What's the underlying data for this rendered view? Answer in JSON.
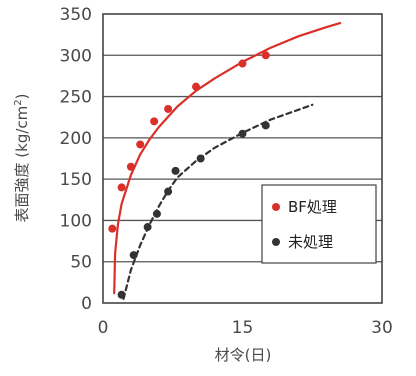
{
  "chart_data": {
    "type": "scatter",
    "xlabel": "材令(日)",
    "ylabel_main": "表面強度 (kg/cm",
    "ylabel_sup": "2",
    "ylabel_close": ")",
    "xlim": [
      0,
      30
    ],
    "ylim": [
      0,
      350
    ],
    "xticks": [
      0,
      15,
      30
    ],
    "xtick_labels": [
      "0",
      "15",
      "30"
    ],
    "yticks": [
      0,
      50,
      100,
      150,
      200,
      250,
      300,
      350
    ],
    "ytick_labels": [
      "0",
      "50",
      "100",
      "150",
      "200",
      "250",
      "300",
      "350"
    ],
    "grid": "horizontal",
    "legend_position": "lower-right",
    "series": [
      {
        "name": "BF処理",
        "color": "#d9302a",
        "line_style": "solid",
        "points": [
          {
            "x": 1,
            "y": 90
          },
          {
            "x": 2,
            "y": 140
          },
          {
            "x": 3,
            "y": 165
          },
          {
            "x": 4,
            "y": 192
          },
          {
            "x": 5.5,
            "y": 220
          },
          {
            "x": 7,
            "y": 235
          },
          {
            "x": 10,
            "y": 262
          },
          {
            "x": 15,
            "y": 290
          },
          {
            "x": 17.5,
            "y": 300
          }
        ],
        "fit_curve": [
          [
            1.2,
            12
          ],
          [
            1.3,
            60
          ],
          [
            1.6,
            95
          ],
          [
            2,
            120
          ],
          [
            3,
            155
          ],
          [
            4,
            180
          ],
          [
            5,
            198
          ],
          [
            6,
            213
          ],
          [
            8,
            238
          ],
          [
            10,
            257
          ],
          [
            12,
            272
          ],
          [
            15,
            292
          ],
          [
            18,
            309
          ],
          [
            21,
            323
          ],
          [
            24,
            334
          ],
          [
            25.5,
            339
          ]
        ]
      },
      {
        "name": "未処理",
        "color": "#333333",
        "line_style": "dashed",
        "points": [
          {
            "x": 2,
            "y": 10
          },
          {
            "x": 3.3,
            "y": 58
          },
          {
            "x": 4.8,
            "y": 92
          },
          {
            "x": 5.8,
            "y": 108
          },
          {
            "x": 7,
            "y": 135
          },
          {
            "x": 7.8,
            "y": 160
          },
          {
            "x": 10.5,
            "y": 175
          },
          {
            "x": 15,
            "y": 205
          },
          {
            "x": 17.5,
            "y": 215
          }
        ],
        "fit_curve": [
          [
            2.2,
            5
          ],
          [
            3,
            40
          ],
          [
            4,
            70
          ],
          [
            5,
            95
          ],
          [
            6,
            117
          ],
          [
            7,
            136
          ],
          [
            8,
            152
          ],
          [
            10,
            172
          ],
          [
            12,
            188
          ],
          [
            15,
            206
          ],
          [
            18,
            222
          ],
          [
            21,
            234
          ],
          [
            22.5,
            240
          ]
        ]
      }
    ]
  }
}
